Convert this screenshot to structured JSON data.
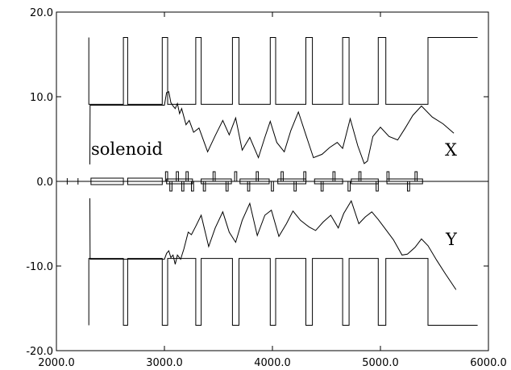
{
  "chart_data": {
    "type": "line",
    "xlim": [
      2000,
      6000
    ],
    "ylim": [
      -20,
      20
    ],
    "xticks": [
      2000,
      3000,
      4000,
      5000,
      6000
    ],
    "yticks": [
      -20,
      -10,
      0,
      10,
      20
    ],
    "xtick_labels": [
      "2000.0",
      "3000.0",
      "4000.0",
      "5000.0",
      "6000.0"
    ],
    "ytick_labels": [
      "-20.0",
      "-10.0",
      "0.0",
      "10.0",
      "20.0"
    ],
    "grid": false,
    "annotations": {
      "solenoid": "solenoid",
      "x_label": "X",
      "y_label": "Y"
    },
    "series": [
      {
        "x": [
          2310,
          2312,
          2340,
          3000,
          3020,
          3040,
          3060,
          3080,
          3100,
          3120,
          3140,
          3160,
          3200,
          3230,
          3270,
          3320,
          3400,
          3470,
          3540,
          3600,
          3660,
          3720,
          3790,
          3870,
          3930,
          3980,
          4040,
          4110,
          4170,
          4240,
          4310,
          4380,
          4460,
          4530,
          4600,
          4650,
          4720,
          4790,
          4850,
          4880,
          4930,
          5000,
          5080,
          5160,
          5230,
          5300,
          5380,
          5480,
          5580,
          5680
        ],
        "values": [
          2.0,
          9.0,
          9.0,
          9.0,
          10.5,
          10.6,
          9.3,
          8.9,
          8.6,
          9.2,
          8.0,
          8.6,
          6.7,
          7.2,
          5.8,
          6.3,
          3.5,
          5.4,
          7.2,
          5.5,
          7.5,
          3.7,
          5.2,
          2.8,
          5.2,
          7.1,
          4.6,
          3.5,
          6.0,
          8.2,
          5.5,
          2.8,
          3.2,
          4.0,
          4.6,
          3.9,
          7.4,
          4.2,
          2.1,
          2.4,
          5.3,
          6.4,
          5.3,
          4.9,
          6.3,
          7.8,
          8.9,
          7.6,
          6.8,
          5.7
        ]
      },
      {
        "x": [
          2310,
          2312,
          2340,
          3000,
          3020,
          3040,
          3060,
          3080,
          3100,
          3120,
          3150,
          3180,
          3220,
          3250,
          3290,
          3340,
          3410,
          3470,
          3540,
          3600,
          3660,
          3720,
          3790,
          3860,
          3930,
          3990,
          4060,
          4130,
          4190,
          4260,
          4340,
          4400,
          4470,
          4540,
          4610,
          4660,
          4730,
          4800,
          4860,
          4920,
          4980,
          5050,
          5120,
          5200,
          5250,
          5320,
          5380,
          5440,
          5520,
          5600,
          5700
        ],
        "values": [
          -2.0,
          -9.2,
          -9.2,
          -9.2,
          -8.5,
          -8.2,
          -9.0,
          -8.7,
          -9.8,
          -8.7,
          -9.2,
          -8.0,
          -6.0,
          -6.3,
          -5.3,
          -4.0,
          -7.7,
          -5.5,
          -3.6,
          -6.0,
          -7.2,
          -4.6,
          -2.6,
          -6.4,
          -4.0,
          -3.4,
          -6.5,
          -5.0,
          -3.5,
          -4.6,
          -5.4,
          -5.8,
          -4.8,
          -4.0,
          -5.5,
          -3.8,
          -2.3,
          -5.0,
          -4.2,
          -3.6,
          -4.5,
          -5.7,
          -6.9,
          -8.7,
          -8.6,
          -7.8,
          -6.8,
          -7.6,
          -9.3,
          -10.9,
          -12.8
        ]
      },
      {
        "x": [
          2300,
          2300,
          2620,
          2620,
          2660,
          2660,
          2980,
          2980,
          3030,
          3030,
          3290,
          3290,
          3340,
          3340,
          3630,
          3630,
          3690,
          3690,
          3980,
          3980,
          4030,
          4030,
          4310,
          4310,
          4370,
          4370,
          4650,
          4650,
          4710,
          4710,
          4980,
          4980,
          5050,
          5050,
          5440,
          5440,
          5900
        ],
        "values": [
          17,
          9.1,
          9.1,
          17,
          17,
          9.1,
          9.1,
          17,
          17,
          9.1,
          9.1,
          17,
          17,
          9.1,
          9.1,
          17,
          17,
          9.1,
          9.1,
          17,
          17,
          9.1,
          9.1,
          17,
          17,
          9.1,
          9.1,
          17,
          17,
          9.1,
          9.1,
          17,
          17,
          9.1,
          9.1,
          17,
          17
        ]
      },
      {
        "x": [
          2300,
          2300,
          2620,
          2620,
          2660,
          2660,
          2980,
          2980,
          3030,
          3030,
          3290,
          3290,
          3340,
          3340,
          3630,
          3630,
          3690,
          3690,
          3980,
          3980,
          4030,
          4030,
          4310,
          4310,
          4370,
          4370,
          4650,
          4650,
          4710,
          4710,
          4980,
          4980,
          5050,
          5050,
          5440,
          5440,
          5900
        ],
        "values": [
          -17,
          -9.1,
          -9.1,
          -17,
          -17,
          -9.1,
          -9.1,
          -17,
          -17,
          -9.1,
          -9.1,
          -17,
          -17,
          -9.1,
          -9.1,
          -17,
          -17,
          -9.1,
          -9.1,
          -17,
          -17,
          -9.1,
          -9.1,
          -17,
          -17,
          -9.1,
          -9.1,
          -17,
          -17,
          -9.1,
          -9.1,
          -17,
          -17,
          -9.1,
          -9.1,
          -17,
          -17
        ]
      }
    ],
    "beamline": {
      "axis_y": 0,
      "x_start": 2000,
      "x_end": 6000,
      "marker_x": [
        2100,
        2200
      ],
      "solenoid_boxes": [
        {
          "x0": 2320,
          "x1": 2620
        },
        {
          "x0": 2660,
          "x1": 2980
        }
      ],
      "quads": [
        {
          "x0": 3010,
          "x1": 3030,
          "sign": 1
        },
        {
          "x0": 3050,
          "x1": 3070,
          "sign": -1
        },
        {
          "x0": 3110,
          "x1": 3130,
          "sign": 1
        },
        {
          "x0": 3160,
          "x1": 3180,
          "sign": -1
        },
        {
          "x0": 3200,
          "x1": 3220,
          "sign": 1
        },
        {
          "x0": 3250,
          "x1": 3270,
          "sign": -1
        },
        {
          "x0": 3360,
          "x1": 3380,
          "sign": -1
        },
        {
          "x0": 3450,
          "x1": 3470,
          "sign": 1
        },
        {
          "x0": 3570,
          "x1": 3590,
          "sign": -1
        },
        {
          "x0": 3650,
          "x1": 3670,
          "sign": 1
        },
        {
          "x0": 3770,
          "x1": 3790,
          "sign": -1
        },
        {
          "x0": 3850,
          "x1": 3870,
          "sign": 1
        },
        {
          "x0": 3990,
          "x1": 4010,
          "sign": -1
        },
        {
          "x0": 4080,
          "x1": 4100,
          "sign": 1
        },
        {
          "x0": 4200,
          "x1": 4220,
          "sign": -1
        },
        {
          "x0": 4290,
          "x1": 4310,
          "sign": 1
        },
        {
          "x0": 4450,
          "x1": 4470,
          "sign": -1
        },
        {
          "x0": 4560,
          "x1": 4580,
          "sign": 1
        },
        {
          "x0": 4700,
          "x1": 4720,
          "sign": -1
        },
        {
          "x0": 4800,
          "x1": 4820,
          "sign": 1
        },
        {
          "x0": 4960,
          "x1": 4980,
          "sign": -1
        },
        {
          "x0": 5060,
          "x1": 5080,
          "sign": 1
        },
        {
          "x0": 5250,
          "x1": 5270,
          "sign": -1
        },
        {
          "x0": 5320,
          "x1": 5340,
          "sign": 1
        }
      ],
      "drift_boxes": [
        {
          "x0": 3020,
          "x1": 3260
        },
        {
          "x0": 3340,
          "x1": 3620
        },
        {
          "x0": 3700,
          "x1": 3970
        },
        {
          "x0": 4050,
          "x1": 4310
        },
        {
          "x0": 4390,
          "x1": 4650
        },
        {
          "x0": 4730,
          "x1": 4980
        },
        {
          "x0": 5060,
          "x1": 5390
        }
      ]
    }
  }
}
